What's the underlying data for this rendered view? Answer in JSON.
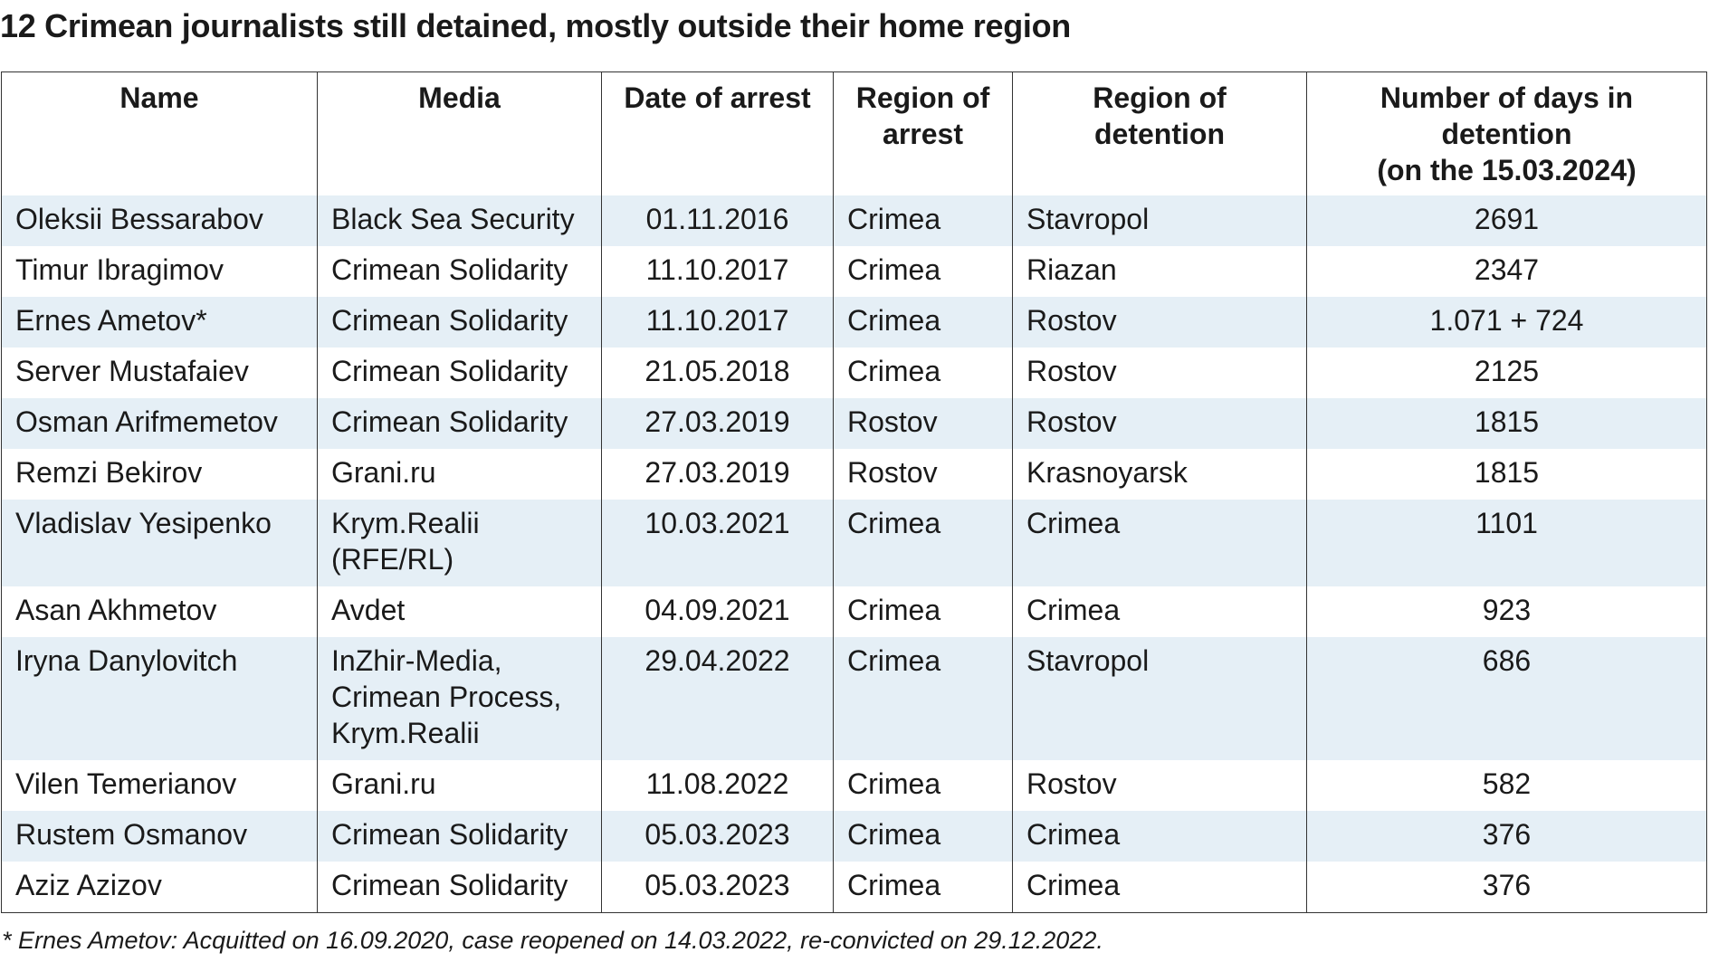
{
  "title": "12 Crimean journalists still detained, mostly outside their home region",
  "table": {
    "headers": {
      "name": "Name",
      "media": "Media",
      "date": "Date of arrest",
      "region_arrest_1": "Region of",
      "region_arrest_2": "arrest",
      "region_detention_1": "Region of",
      "region_detention_2": "detention",
      "days_1": "Number of days in",
      "days_2": "detention",
      "days_3": "(on the 15.03.2024)"
    },
    "rows": [
      {
        "name": "Oleksii Bessarabov",
        "media": "Black Sea Security",
        "date": "01.11.2016",
        "region_arrest": "Crimea",
        "region_detention": "Stavropol",
        "days": "2691"
      },
      {
        "name": "Timur Ibragimov",
        "media": "Crimean Solidarity",
        "date": "11.10.2017",
        "region_arrest": "Crimea",
        "region_detention": "Riazan",
        "days": "2347"
      },
      {
        "name": "Ernes Ametov*",
        "media": "Crimean Solidarity",
        "date": "11.10.2017",
        "region_arrest": "Crimea",
        "region_detention": "Rostov",
        "days": "1.071 + 724"
      },
      {
        "name": "Server Mustafaiev",
        "media": "Crimean Solidarity",
        "date": "21.05.2018",
        "region_arrest": "Crimea",
        "region_detention": "Rostov",
        "days": "2125"
      },
      {
        "name": "Osman Arifmemetov",
        "media": "Crimean Solidarity",
        "date": "27.03.2019",
        "region_arrest": "Rostov",
        "region_detention": "Rostov",
        "days": "1815"
      },
      {
        "name": "Remzi Bekirov",
        "media": "Grani.ru",
        "date": "27.03.2019",
        "region_arrest": "Rostov",
        "region_detention": "Krasnoyarsk",
        "days": "1815"
      },
      {
        "name": "Vladislav Yesipenko",
        "media": "Krym.Realii (RFE/RL)",
        "date": "10.03.2021",
        "region_arrest": "Crimea",
        "region_detention": "Crimea",
        "days": "1101"
      },
      {
        "name": "Asan Akhmetov",
        "media": "Avdet",
        "date": "04.09.2021",
        "region_arrest": "Crimea",
        "region_detention": "Crimea",
        "days": "923"
      },
      {
        "name": "Iryna Danylovitch",
        "media": "InZhir-Media, Crimean Process, Krym.Realii",
        "date": "29.04.2022",
        "region_arrest": "Crimea",
        "region_detention": "Stavropol",
        "days": "686"
      },
      {
        "name": "Vilen Temerianov",
        "media": "Grani.ru",
        "date": "11.08.2022",
        "region_arrest": "Crimea",
        "region_detention": "Rostov",
        "days": "582"
      },
      {
        "name": "Rustem Osmanov",
        "media": "Crimean Solidarity",
        "date": "05.03.2023",
        "region_arrest": "Crimea",
        "region_detention": "Crimea",
        "days": "376"
      },
      {
        "name": "Aziz Azizov",
        "media": "Crimean Solidarity",
        "date": "05.03.2023",
        "region_arrest": "Crimea",
        "region_detention": "Crimea",
        "days": "376"
      }
    ]
  },
  "footnote": "* Ernes Ametov: Acquitted on 16.09.2020, case reopened on 14.03.2022, re-convicted on 29.12.2022.",
  "colors": {
    "row_shade": "#e5eff6",
    "text": "#1a1a1a",
    "border": "#333333"
  }
}
